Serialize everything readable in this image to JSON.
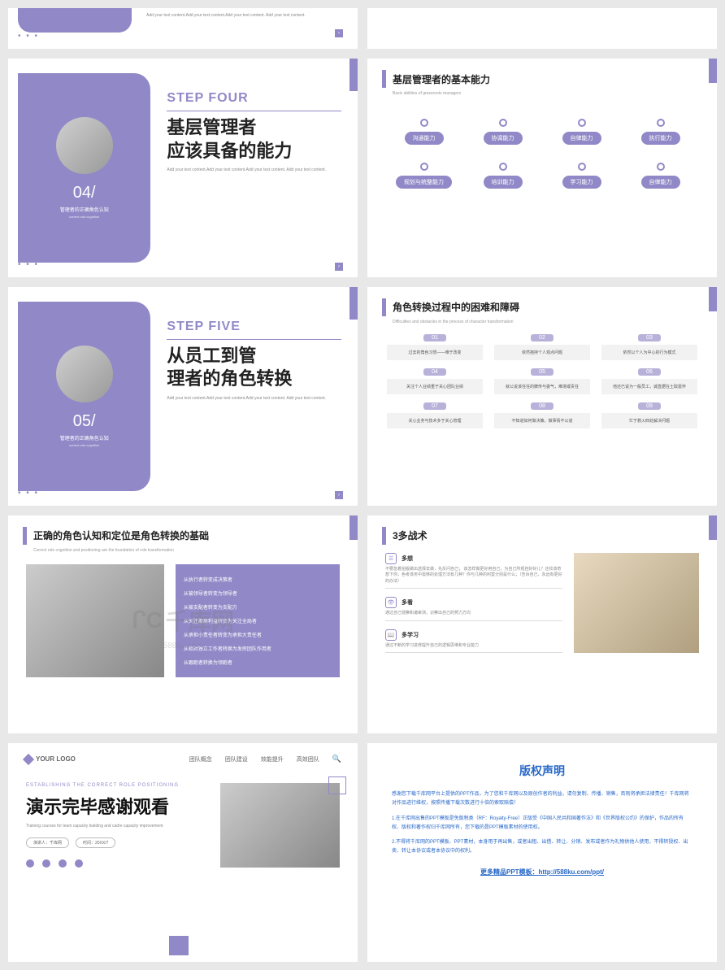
{
  "colors": {
    "accent": "#9189c7",
    "blue": "#2868c8"
  },
  "watermark": {
    "logo": "ᒋC",
    "text": "千库网",
    "url": "588ku.com"
  },
  "partial_top": {
    "dots": "• • •",
    "sub": "Add your text content.Add your text content.Add your text content. Add your text content."
  },
  "step4": {
    "num": "04/",
    "cn_small": "管理者的正确角色认知",
    "en_small": "correct role cognition",
    "en": "STEP FOUR",
    "title_l1": "基层管理者",
    "title_l2": "应该具备的能力",
    "sub": "Add your text content.Add your text content.Add your text content. Add your text content.",
    "arrow": "›"
  },
  "step5": {
    "num": "05/",
    "cn_small": "管理者的正确角色认知",
    "en_small": "correct role cognition",
    "en": "STEP FIVE",
    "title_l1": "从员工到管",
    "title_l2": "理者的角色转换",
    "sub": "Add your text content.Add your text content.Add your text content. Add your text content.",
    "arrow": "›"
  },
  "abilities": {
    "title": "基层管理者的基本能力",
    "subtitle": "Basic abilities of grassroots managers",
    "items": [
      "沟通能力",
      "协调能力",
      "自律能力",
      "执行能力",
      "规划与统整能力",
      "培训能力",
      "学习能力",
      "自律能力"
    ]
  },
  "obstacles": {
    "title": "角色转换过程中的困难和障碍",
    "subtitle": "Difficulties and obstacles in the process of character transformation",
    "items": [
      {
        "n": "01",
        "t": "过去的角色习惯——难于改变"
      },
      {
        "n": "02",
        "t": "依然抱持个人观点问题"
      },
      {
        "n": "03",
        "t": "依然以个人为中心的行为模式"
      },
      {
        "n": "04",
        "t": "关注个人业绩重于关心团队业绩"
      },
      {
        "n": "05",
        "t": "就公说该任任的脾传与委气，难境或责任"
      },
      {
        "n": "06",
        "t": "他还已说为一般员工，诚直据在土取嘉怀"
      },
      {
        "n": "07",
        "t": "关心业务与技术多于关心管理"
      },
      {
        "n": "08",
        "t": "不知道如何做决策，做事情不公道"
      },
      {
        "n": "09",
        "t": "忙于救火四处解决问题"
      }
    ]
  },
  "role_cognition": {
    "title": "正确的角色认知和定位是角色转换的基础",
    "subtitle": "Correct role cognition and positioning are the foundation of role transformation",
    "lines": [
      "从执行者转变成决策者",
      "从被领导者转变为领导者",
      "从被支配者转变为支配方",
      "从关注部局利益转变为关注全局者",
      "从承担小责任者转变为承担大责任者",
      "从相对独立工作者转换为发挥团队作用者",
      "从跟跑者转换为领跑者"
    ]
  },
  "three_more": {
    "title": "3多战术",
    "subtitle": "",
    "items": [
      {
        "icon": "☰",
        "h": "多想",
        "d": "不要急着拍版做出选择去做，先反问自己；\n该怎样做更好用自己，为自己所观自好好儿？还妆该奇想下你，色考该务中需够的处理方法有几种？你与几种的利害分别是什么；（告诉自己，永远有更好的办法）"
      },
      {
        "icon": "👁",
        "h": "多看",
        "d": "通过自己观察和诸审测，识察出自己的努力方向"
      },
      {
        "icon": "📖",
        "h": "多学习",
        "d": "通过不断的学习进修提升自己的逻辑思维和专业能力"
      }
    ]
  },
  "thanks": {
    "logo": "YOUR LOGO",
    "nav": [
      "团队概念",
      "团队建设",
      "效能提升",
      "高效团队"
    ],
    "en": "ESTABLISHING THE CORRECT ROLE POSITIONING",
    "cn": "演示完毕感谢观看",
    "sub": "Training courses for team capacity building and cadre capacity improvement",
    "presenter_label": "演讲人：千库网",
    "time_label": "时间：20XX/7"
  },
  "copyright": {
    "title": "版权声明",
    "p1": "感谢您下载千库网平台上提供的PPT作品，为了您和千库网以及原创作者的利益，请勿复制、传播、销售，否则将承担法律责任！千库网将对作品进行维权，按照传播下载次数进行十倍的索取赔偿！",
    "p2": "1.在千库网出售的PPT模板是免版税类（RF：Royalty-Free）正版受《中国人民共和国著作法》和《世界版权公约》的保护，作品的所有权、版权和著作权归千库网所有，您下载的是PPT模板素材的使用权。",
    "p3": "2.不得将千库网的PPT模板、PPT素材，本身用于再出售，或者出租、出借、转让、分销、发布或者作为礼物供他人使用，不得转授权、出卖、转让本协议或者本协议中的权利。",
    "link_label": "更多精品PPT模板：",
    "link_url": "http://588ku.com/ppt/"
  }
}
